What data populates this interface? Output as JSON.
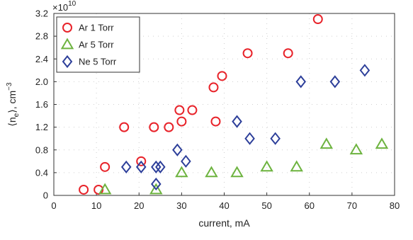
{
  "chart_data": {
    "type": "scatter",
    "title": "",
    "xlabel": "current, mA",
    "ylabel": "⟨n",
    "ylabel_sub": "e",
    "ylabel_tail": "⟩, cm",
    "ylabel_sup": "−3",
    "y_multiplier": "×10",
    "y_multiplier_exp": "10",
    "xlim": [
      0,
      80
    ],
    "ylim": [
      0,
      3.2
    ],
    "xticks": [
      0,
      10,
      20,
      30,
      40,
      50,
      60,
      70,
      80
    ],
    "xtick_labels": [
      "0",
      "10",
      "20",
      "30",
      "40",
      "50",
      "60",
      "70",
      "80"
    ],
    "yticks": [
      0,
      0.4,
      0.8,
      1.2,
      1.6,
      2.0,
      2.4,
      2.8,
      3.2
    ],
    "ytick_labels": [
      "0",
      "0.4",
      "0.8",
      "1.2",
      "1.6",
      "2.0",
      "2.4",
      "2.8",
      "3.2"
    ],
    "grid": true,
    "legend_position": "top-left",
    "series": [
      {
        "name": "Ar 1 Torr",
        "marker": "circle",
        "color": "#e8232a",
        "points": [
          [
            7,
            0.1
          ],
          [
            10.5,
            0.1
          ],
          [
            12,
            0.5
          ],
          [
            16.5,
            1.2
          ],
          [
            20.5,
            0.6
          ],
          [
            23.5,
            1.2
          ],
          [
            27,
            1.2
          ],
          [
            29.5,
            1.5
          ],
          [
            30,
            1.3
          ],
          [
            32.5,
            1.5
          ],
          [
            37.5,
            1.9
          ],
          [
            38,
            1.3
          ],
          [
            39.5,
            2.1
          ],
          [
            45.5,
            2.5
          ],
          [
            55,
            2.5
          ],
          [
            62,
            3.1
          ]
        ]
      },
      {
        "name": "Ar 5 Torr",
        "marker": "triangle",
        "color": "#6db33f",
        "points": [
          [
            12,
            0.1
          ],
          [
            24,
            0.1
          ],
          [
            30,
            0.4
          ],
          [
            37,
            0.4
          ],
          [
            43,
            0.4
          ],
          [
            50,
            0.5
          ],
          [
            57,
            0.5
          ],
          [
            64,
            0.9
          ],
          [
            71,
            0.8
          ],
          [
            77,
            0.9
          ]
        ]
      },
      {
        "name": "Ne 5 Torr",
        "marker": "diamond",
        "color": "#2d3f9a",
        "points": [
          [
            17,
            0.5
          ],
          [
            20.5,
            0.5
          ],
          [
            24,
            0.2
          ],
          [
            24,
            0.5
          ],
          [
            25,
            0.5
          ],
          [
            29,
            0.8
          ],
          [
            31,
            0.6
          ],
          [
            43,
            1.3
          ],
          [
            46,
            1.0
          ],
          [
            52,
            1.0
          ],
          [
            58,
            2.0
          ],
          [
            66,
            2.0
          ],
          [
            73,
            2.2
          ]
        ]
      }
    ]
  }
}
